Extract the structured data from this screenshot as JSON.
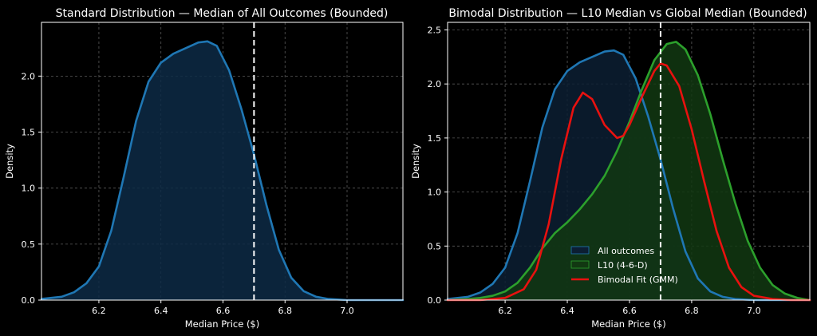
{
  "chart_data": [
    {
      "type": "area",
      "title": "Standard Distribution — Median of All Outcomes (Bounded)",
      "xlabel": "Median Price ($)",
      "ylabel": "Density",
      "xlim": [
        6.015,
        7.18
      ],
      "ylim": [
        0,
        2.48
      ],
      "xticks": [
        6.2,
        6.4,
        6.6,
        6.8,
        7.0
      ],
      "xtick_labels": [
        "6.2",
        "6.4",
        "6.6",
        "6.8",
        "7.0"
      ],
      "yticks": [
        0.0,
        0.5,
        1.0,
        1.5,
        2.0
      ],
      "ytick_labels": [
        "0.0",
        "0.5",
        "1.0",
        "1.5",
        "2.0"
      ],
      "grid": true,
      "series": [
        {
          "name": "All outcomes",
          "color": "#1f77b4",
          "fill": "#0d2a45",
          "x": [
            6.015,
            6.08,
            6.12,
            6.16,
            6.2,
            6.24,
            6.28,
            6.32,
            6.36,
            6.4,
            6.44,
            6.48,
            6.52,
            6.55,
            6.58,
            6.62,
            6.66,
            6.7,
            6.74,
            6.78,
            6.82,
            6.86,
            6.9,
            6.94,
            7.0,
            7.1,
            7.18
          ],
          "y": [
            0.01,
            0.03,
            0.07,
            0.15,
            0.3,
            0.62,
            1.1,
            1.6,
            1.95,
            2.12,
            2.2,
            2.25,
            2.3,
            2.31,
            2.27,
            2.05,
            1.7,
            1.3,
            0.85,
            0.45,
            0.2,
            0.08,
            0.03,
            0.01,
            0.0,
            0.0,
            0.0
          ]
        }
      ],
      "vlines": [
        {
          "x": 6.7,
          "style": "dashed",
          "color": "#ffffff"
        }
      ]
    },
    {
      "type": "area",
      "title": "Bimodal Distribution — L10 Median vs Global Median (Bounded)",
      "xlabel": "Median Price ($)",
      "ylabel": "Density",
      "xlim": [
        6.015,
        7.18
      ],
      "ylim": [
        0,
        2.57
      ],
      "xticks": [
        6.2,
        6.4,
        6.6,
        6.8,
        7.0
      ],
      "xtick_labels": [
        "6.2",
        "6.4",
        "6.6",
        "6.8",
        "7.0"
      ],
      "yticks": [
        0.0,
        0.5,
        1.0,
        1.5,
        2.0,
        2.5
      ],
      "ytick_labels": [
        "0.0",
        "0.5",
        "1.0",
        "1.5",
        "2.0",
        "2.5"
      ],
      "grid": true,
      "legend_position": "lower-center",
      "series": [
        {
          "name": "All outcomes",
          "color": "#1f77b4",
          "fill": "#0c1e33",
          "x": [
            6.015,
            6.08,
            6.12,
            6.16,
            6.2,
            6.24,
            6.28,
            6.32,
            6.36,
            6.4,
            6.44,
            6.48,
            6.52,
            6.55,
            6.58,
            6.62,
            6.66,
            6.7,
            6.74,
            6.78,
            6.82,
            6.86,
            6.9,
            6.94,
            7.0,
            7.1,
            7.18
          ],
          "y": [
            0.01,
            0.03,
            0.07,
            0.15,
            0.3,
            0.62,
            1.1,
            1.6,
            1.95,
            2.12,
            2.2,
            2.25,
            2.3,
            2.31,
            2.27,
            2.05,
            1.7,
            1.3,
            0.85,
            0.45,
            0.2,
            0.08,
            0.03,
            0.01,
            0.0,
            0.0,
            0.0
          ]
        },
        {
          "name": "L10 (4-6-D)",
          "color": "#2ca02c",
          "fill": "#123812",
          "x": [
            6.015,
            6.08,
            6.12,
            6.16,
            6.2,
            6.24,
            6.28,
            6.32,
            6.36,
            6.4,
            6.44,
            6.48,
            6.52,
            6.56,
            6.6,
            6.64,
            6.68,
            6.72,
            6.75,
            6.78,
            6.82,
            6.86,
            6.9,
            6.94,
            6.98,
            7.02,
            7.06,
            7.1,
            7.14,
            7.18
          ],
          "y": [
            0.0,
            0.01,
            0.02,
            0.04,
            0.08,
            0.16,
            0.3,
            0.48,
            0.62,
            0.72,
            0.84,
            0.98,
            1.15,
            1.38,
            1.65,
            1.95,
            2.22,
            2.37,
            2.39,
            2.32,
            2.08,
            1.72,
            1.3,
            0.9,
            0.55,
            0.3,
            0.14,
            0.06,
            0.02,
            0.0
          ]
        },
        {
          "name": "Bimodal Fit (GMM)",
          "color": "#e8110f",
          "fill": "none",
          "x": [
            6.015,
            6.12,
            6.2,
            6.26,
            6.3,
            6.34,
            6.38,
            6.42,
            6.45,
            6.48,
            6.52,
            6.56,
            6.58,
            6.6,
            6.64,
            6.68,
            6.7,
            6.72,
            6.76,
            6.8,
            6.84,
            6.88,
            6.92,
            6.96,
            7.0,
            7.06,
            7.12,
            7.18
          ],
          "y": [
            0.0,
            0.0,
            0.02,
            0.1,
            0.28,
            0.7,
            1.3,
            1.78,
            1.92,
            1.86,
            1.62,
            1.5,
            1.52,
            1.62,
            1.88,
            2.12,
            2.19,
            2.17,
            1.98,
            1.58,
            1.1,
            0.64,
            0.3,
            0.12,
            0.04,
            0.01,
            0.0,
            0.0
          ]
        }
      ],
      "vlines": [
        {
          "x": 6.7,
          "style": "dashed",
          "color": "#ffffff"
        }
      ]
    }
  ]
}
